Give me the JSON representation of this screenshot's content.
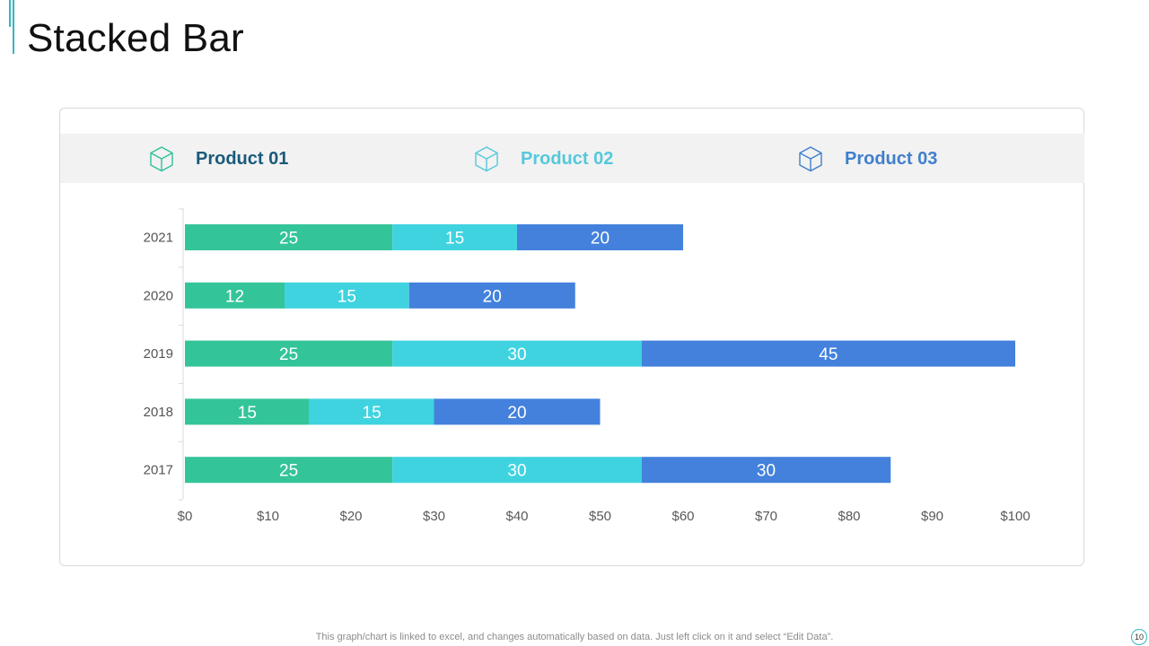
{
  "slide": {
    "title": "Stacked Bar",
    "footer": "This graph/chart is linked to excel, and changes automatically based on data. Just left click on it and select “Edit Data”.",
    "page_number": "10"
  },
  "legend": [
    {
      "label": "Product 01",
      "icon": "cube-icon",
      "color": "#1a5a7a",
      "icon_color": "#2fc09a"
    },
    {
      "label": "Product 02",
      "icon": "cube-icon",
      "color": "#55c8dc",
      "icon_color": "#55c8dc"
    },
    {
      "label": "Product 03",
      "icon": "cube-icon",
      "color": "#3f7fcc",
      "icon_color": "#3f7fcc"
    }
  ],
  "chart_data": {
    "type": "bar",
    "orientation": "horizontal",
    "stacked": true,
    "categories": [
      "2021",
      "2020",
      "2019",
      "2018",
      "2017"
    ],
    "series": [
      {
        "name": "Product 01",
        "values": [
          25,
          12,
          25,
          15,
          25
        ],
        "color": "#34c49a"
      },
      {
        "name": "Product 02",
        "values": [
          15,
          15,
          30,
          15,
          30
        ],
        "color": "#3fd3e0"
      },
      {
        "name": "Product 03",
        "values": [
          20,
          20,
          45,
          20,
          30
        ],
        "color": "#4381dc"
      }
    ],
    "x_ticks": [
      "$0",
      "$10",
      "$20",
      "$30",
      "$40",
      "$50",
      "$60",
      "$70",
      "$80",
      "$90",
      "$100"
    ],
    "xlim": [
      0,
      100
    ],
    "grid": false,
    "data_labels": true
  }
}
